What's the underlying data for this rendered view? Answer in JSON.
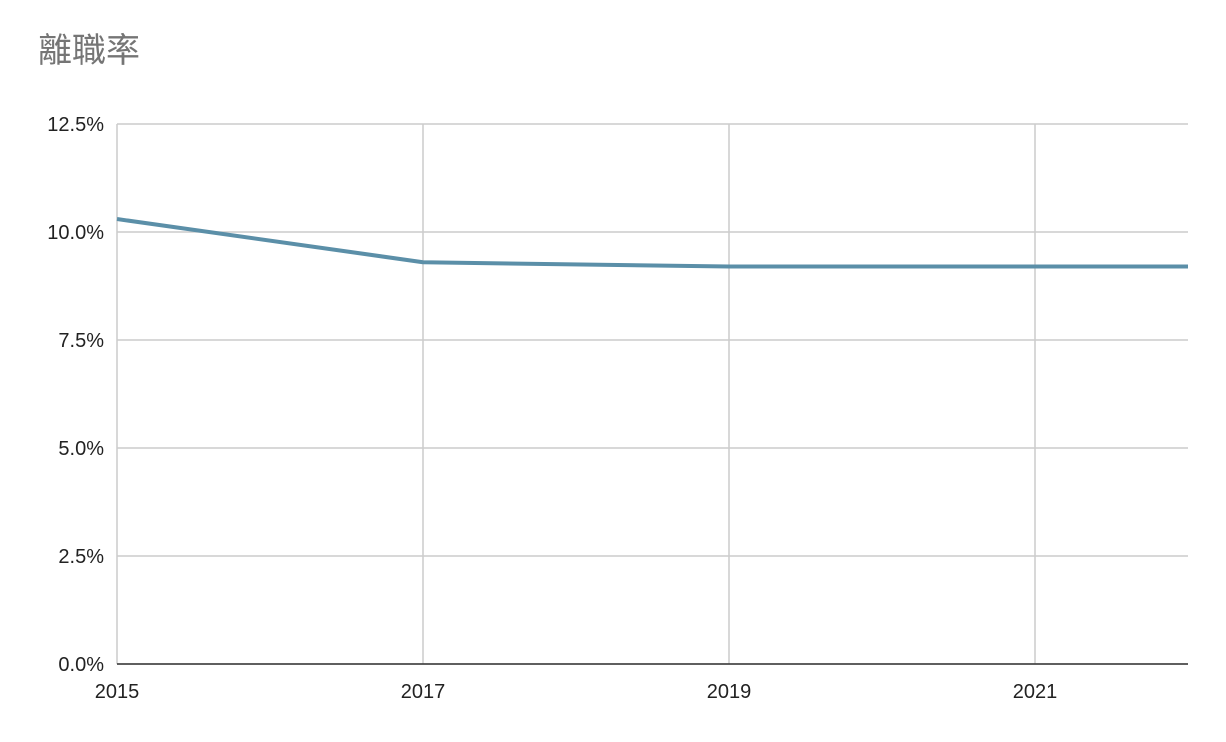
{
  "chart_data": {
    "type": "line",
    "title": "離職率",
    "x": [
      2015,
      2017,
      2019,
      2021,
      2022
    ],
    "series": [
      {
        "name": "離職率",
        "color": "#5b8fa8",
        "values": [
          10.3,
          9.3,
          9.2,
          9.2,
          9.2
        ]
      }
    ],
    "xlim": [
      2015,
      2022
    ],
    "xticks": [
      2015,
      2017,
      2019,
      2021
    ],
    "ylim": [
      0,
      12.5
    ],
    "yticks": [
      {
        "value": 0,
        "label": "0.0%"
      },
      {
        "value": 2.5,
        "label": "2.5%"
      },
      {
        "value": 5,
        "label": "5.0%"
      },
      {
        "value": 7.5,
        "label": "7.5%"
      },
      {
        "value": 10,
        "label": "10.0%"
      },
      {
        "value": 12.5,
        "label": "12.5%"
      }
    ],
    "grid": true
  }
}
